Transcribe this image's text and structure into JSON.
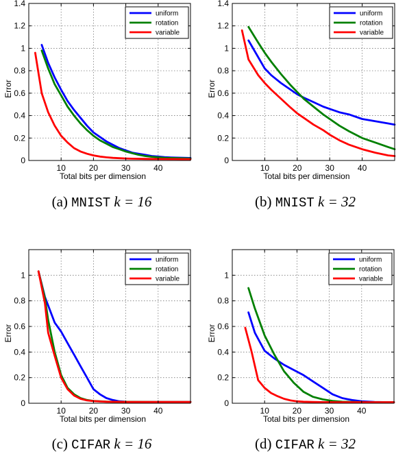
{
  "chart_data": [
    {
      "type": "line",
      "id": "a",
      "caption": {
        "label": "(a)",
        "dataset": "MNIST",
        "math": "k = 16"
      },
      "xlabel": "Total bits per dimension",
      "ylabel": "Error",
      "xlim": [
        0,
        50
      ],
      "ylim": [
        0,
        1.4
      ],
      "xticks": [
        10,
        20,
        30,
        40
      ],
      "yticks": [
        0,
        0.2,
        0.4,
        0.6,
        0.8,
        1,
        1.2,
        1.4
      ],
      "ytick_labels": [
        "0",
        "0.2",
        "0.4",
        "0.6",
        "0.8",
        "1",
        "1.2",
        "1.4"
      ],
      "grid": true,
      "legend": "top-right",
      "series": [
        {
          "name": "uniform",
          "color": "#0000ff",
          "x": [
            4,
            6,
            8,
            10,
            12,
            14,
            16,
            18,
            20,
            22,
            24,
            26,
            28,
            30,
            32,
            34,
            36,
            38,
            40,
            42,
            44,
            46,
            48,
            50
          ],
          "y": [
            1.03,
            0.87,
            0.74,
            0.63,
            0.53,
            0.45,
            0.38,
            0.31,
            0.25,
            0.21,
            0.17,
            0.14,
            0.11,
            0.09,
            0.07,
            0.06,
            0.05,
            0.04,
            0.035,
            0.03,
            0.027,
            0.025,
            0.023,
            0.022
          ]
        },
        {
          "name": "rotation",
          "color": "#008000",
          "x": [
            4,
            6,
            8,
            10,
            12,
            14,
            16,
            18,
            20,
            22,
            24,
            26,
            28,
            30,
            32,
            34,
            36,
            38,
            40,
            42,
            44,
            46,
            48,
            50
          ],
          "y": [
            0.98,
            0.82,
            0.68,
            0.58,
            0.48,
            0.4,
            0.33,
            0.27,
            0.22,
            0.18,
            0.15,
            0.12,
            0.1,
            0.08,
            0.065,
            0.05,
            0.04,
            0.033,
            0.028,
            0.024,
            0.022,
            0.02,
            0.019,
            0.018
          ]
        },
        {
          "name": "variable",
          "color": "#ff0000",
          "x": [
            2,
            4,
            6,
            8,
            10,
            12,
            14,
            16,
            18,
            20,
            22,
            24,
            26,
            28,
            30,
            32,
            36,
            40,
            44,
            50
          ],
          "y": [
            0.96,
            0.6,
            0.43,
            0.31,
            0.22,
            0.16,
            0.11,
            0.08,
            0.06,
            0.045,
            0.035,
            0.028,
            0.023,
            0.02,
            0.018,
            0.016,
            0.014,
            0.013,
            0.012,
            0.011
          ]
        }
      ]
    },
    {
      "type": "line",
      "id": "b",
      "caption": {
        "label": "(b)",
        "dataset": "MNIST",
        "math": "k = 32"
      },
      "xlabel": "Total bits per dimension",
      "ylabel": "Error",
      "xlim": [
        0,
        50
      ],
      "ylim": [
        0,
        1.4
      ],
      "xticks": [
        10,
        20,
        30,
        40
      ],
      "yticks": [
        0,
        0.2,
        0.4,
        0.6,
        0.8,
        1,
        1.2,
        1.4
      ],
      "ytick_labels": [
        "0",
        "0.2",
        "0.4",
        "0.6",
        "0.8",
        "1",
        "1.2",
        "1.4"
      ],
      "grid": true,
      "legend": "top-right",
      "series": [
        {
          "name": "uniform",
          "color": "#0000ff",
          "x": [
            5,
            8,
            10,
            12,
            15,
            18,
            20,
            22,
            25,
            28,
            30,
            33,
            36,
            40,
            44,
            48,
            50
          ],
          "y": [
            1.07,
            0.92,
            0.82,
            0.76,
            0.69,
            0.63,
            0.59,
            0.56,
            0.52,
            0.48,
            0.46,
            0.43,
            0.41,
            0.37,
            0.35,
            0.33,
            0.32
          ]
        },
        {
          "name": "rotation",
          "color": "#008000",
          "x": [
            5,
            8,
            10,
            12,
            15,
            18,
            20,
            22,
            25,
            28,
            30,
            33,
            36,
            40,
            44,
            48,
            50
          ],
          "y": [
            1.19,
            1.05,
            0.96,
            0.88,
            0.77,
            0.67,
            0.61,
            0.55,
            0.48,
            0.41,
            0.37,
            0.31,
            0.26,
            0.2,
            0.16,
            0.12,
            0.1
          ]
        },
        {
          "name": "variable",
          "color": "#ff0000",
          "x": [
            3,
            5,
            8,
            10,
            12,
            15,
            18,
            20,
            22,
            25,
            28,
            30,
            33,
            36,
            40,
            44,
            48,
            50
          ],
          "y": [
            1.16,
            0.9,
            0.76,
            0.69,
            0.63,
            0.55,
            0.47,
            0.42,
            0.38,
            0.32,
            0.27,
            0.23,
            0.18,
            0.14,
            0.1,
            0.07,
            0.045,
            0.04
          ]
        }
      ]
    },
    {
      "type": "line",
      "id": "c",
      "caption": {
        "label": "(c)",
        "dataset": "CIFAR",
        "math": "k = 16"
      },
      "xlabel": "Total bits per dimension",
      "ylabel": "Error",
      "xlim": [
        0,
        50
      ],
      "ylim": [
        0,
        1.2
      ],
      "xticks": [
        10,
        20,
        30,
        40
      ],
      "yticks": [
        0,
        0.2,
        0.4,
        0.6,
        0.8,
        1
      ],
      "ytick_labels": [
        "0",
        "0.2",
        "0.4",
        "0.6",
        "0.8",
        "1"
      ],
      "grid": true,
      "legend": "top-right",
      "series": [
        {
          "name": "uniform",
          "color": "#0000ff",
          "x": [
            3,
            5,
            8,
            10,
            12,
            14,
            16,
            18,
            20,
            22,
            24,
            26,
            28,
            30,
            35,
            40,
            50
          ],
          "y": [
            1.03,
            0.83,
            0.63,
            0.56,
            0.47,
            0.38,
            0.29,
            0.2,
            0.11,
            0.07,
            0.04,
            0.025,
            0.015,
            0.012,
            0.01,
            0.01,
            0.01
          ]
        },
        {
          "name": "rotation",
          "color": "#008000",
          "x": [
            3,
            5,
            6,
            8,
            10,
            12,
            14,
            16,
            18,
            20,
            22,
            24,
            26,
            30,
            40,
            50
          ],
          "y": [
            1.03,
            0.82,
            0.65,
            0.4,
            0.22,
            0.12,
            0.07,
            0.04,
            0.025,
            0.018,
            0.015,
            0.013,
            0.012,
            0.011,
            0.01,
            0.01
          ]
        },
        {
          "name": "variable",
          "color": "#ff0000",
          "x": [
            3,
            5,
            6,
            8,
            10,
            12,
            14,
            16,
            18,
            20,
            22,
            24,
            26,
            30,
            40,
            50
          ],
          "y": [
            1.03,
            0.78,
            0.55,
            0.37,
            0.2,
            0.11,
            0.06,
            0.035,
            0.022,
            0.017,
            0.014,
            0.012,
            0.011,
            0.01,
            0.01,
            0.01
          ]
        }
      ]
    },
    {
      "type": "line",
      "id": "d",
      "caption": {
        "label": "(d)",
        "dataset": "CIFAR",
        "math": "k = 32"
      },
      "xlabel": "Total bits per dimension",
      "ylabel": "Error",
      "xlim": [
        0,
        50
      ],
      "ylim": [
        0,
        1.2
      ],
      "xticks": [
        10,
        20,
        30,
        40
      ],
      "yticks": [
        0,
        0.2,
        0.4,
        0.6,
        0.8,
        1
      ],
      "ytick_labels": [
        "0",
        "0.2",
        "0.4",
        "0.6",
        "0.8",
        "1"
      ],
      "grid": true,
      "legend": "top-right",
      "series": [
        {
          "name": "uniform",
          "color": "#0000ff",
          "x": [
            5,
            7,
            10,
            13,
            16,
            19,
            22,
            25,
            28,
            31,
            34,
            37,
            40,
            44,
            48,
            50
          ],
          "y": [
            0.71,
            0.55,
            0.41,
            0.35,
            0.3,
            0.26,
            0.22,
            0.17,
            0.12,
            0.07,
            0.04,
            0.025,
            0.015,
            0.01,
            0.008,
            0.008
          ]
        },
        {
          "name": "rotation",
          "color": "#008000",
          "x": [
            5,
            7,
            10,
            13,
            16,
            19,
            22,
            25,
            28,
            31,
            34,
            38,
            42,
            50
          ],
          "y": [
            0.9,
            0.74,
            0.53,
            0.38,
            0.25,
            0.16,
            0.09,
            0.05,
            0.03,
            0.018,
            0.012,
            0.01,
            0.008,
            0.008
          ]
        },
        {
          "name": "variable",
          "color": "#ff0000",
          "x": [
            4,
            6,
            8,
            10,
            12,
            14,
            16,
            18,
            20,
            22,
            25,
            30,
            40,
            50
          ],
          "y": [
            0.59,
            0.4,
            0.18,
            0.12,
            0.08,
            0.055,
            0.035,
            0.022,
            0.015,
            0.012,
            0.01,
            0.008,
            0.008,
            0.008
          ]
        }
      ]
    }
  ]
}
